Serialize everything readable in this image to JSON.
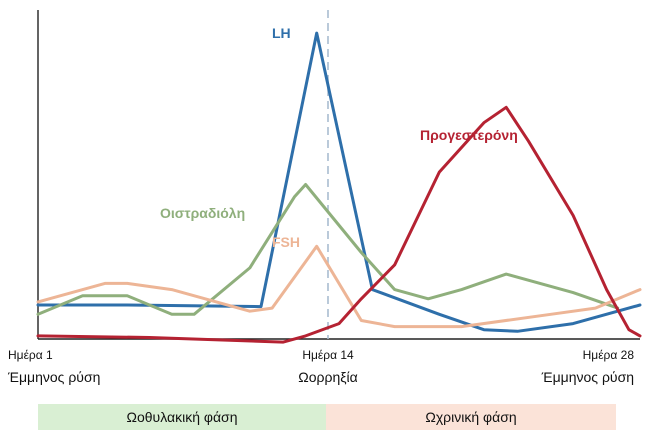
{
  "chart_data": {
    "type": "line",
    "x_ticks": [
      {
        "day": 1,
        "label": "Ημέρα 1",
        "sublabel": "Έμμηνος ρύση"
      },
      {
        "day": 14,
        "label": "Ημέρα 14",
        "sublabel": "Ωορρηξία"
      },
      {
        "day": 28,
        "label": "Ημέρα 28",
        "sublabel": "Έμμηνος ρύση"
      }
    ],
    "xlim": [
      1,
      28
    ],
    "ylim": [
      0,
      100
    ],
    "ovulation_day": 14,
    "series": [
      {
        "name": "LH",
        "color": "#2e6faa",
        "points": [
          [
            1,
            11
          ],
          [
            5,
            11
          ],
          [
            11,
            10.5
          ],
          [
            13.5,
            99
          ],
          [
            16,
            16
          ],
          [
            19,
            8
          ],
          [
            21,
            3
          ],
          [
            22.5,
            2.5
          ],
          [
            25,
            5
          ],
          [
            28,
            11
          ]
        ]
      },
      {
        "name": "Οιστραδιόλη",
        "color": "#8faf7c",
        "points": [
          [
            1,
            8
          ],
          [
            3,
            14
          ],
          [
            5,
            14
          ],
          [
            7,
            8
          ],
          [
            8,
            8
          ],
          [
            10.5,
            23
          ],
          [
            12.5,
            46
          ],
          [
            13,
            50
          ],
          [
            15.5,
            28
          ],
          [
            17,
            16
          ],
          [
            18.5,
            13
          ],
          [
            20,
            16
          ],
          [
            22,
            21
          ],
          [
            25,
            15
          ],
          [
            27,
            10
          ]
        ]
      },
      {
        "name": "FSH",
        "color": "#edb596",
        "points": [
          [
            1,
            12
          ],
          [
            4,
            18
          ],
          [
            5,
            18
          ],
          [
            7,
            16
          ],
          [
            9,
            12
          ],
          [
            10.5,
            9
          ],
          [
            11.5,
            10
          ],
          [
            13.5,
            30
          ],
          [
            15.5,
            6
          ],
          [
            17,
            4
          ],
          [
            20,
            4
          ],
          [
            24,
            8
          ],
          [
            26,
            10
          ],
          [
            28,
            16
          ]
        ]
      },
      {
        "name": "Προγεστερόνη",
        "color": "#b52232",
        "points": [
          [
            1,
            1
          ],
          [
            6,
            0.5
          ],
          [
            12,
            -1
          ],
          [
            13,
            1
          ],
          [
            14.5,
            5
          ],
          [
            15.5,
            13
          ],
          [
            17,
            24
          ],
          [
            19,
            54
          ],
          [
            21,
            70
          ],
          [
            22,
            75
          ],
          [
            23,
            64
          ],
          [
            25,
            40
          ],
          [
            26.5,
            16
          ],
          [
            27.5,
            3
          ],
          [
            28,
            1
          ]
        ]
      }
    ],
    "phases": [
      {
        "label": "Ωοθυλακική φάση",
        "color": "#d9efd3",
        "from_day": 1,
        "to_day": 14
      },
      {
        "label": "Ωχρινική φάση",
        "color": "#fbe3d8",
        "from_day": 14,
        "to_day": 28
      }
    ]
  }
}
